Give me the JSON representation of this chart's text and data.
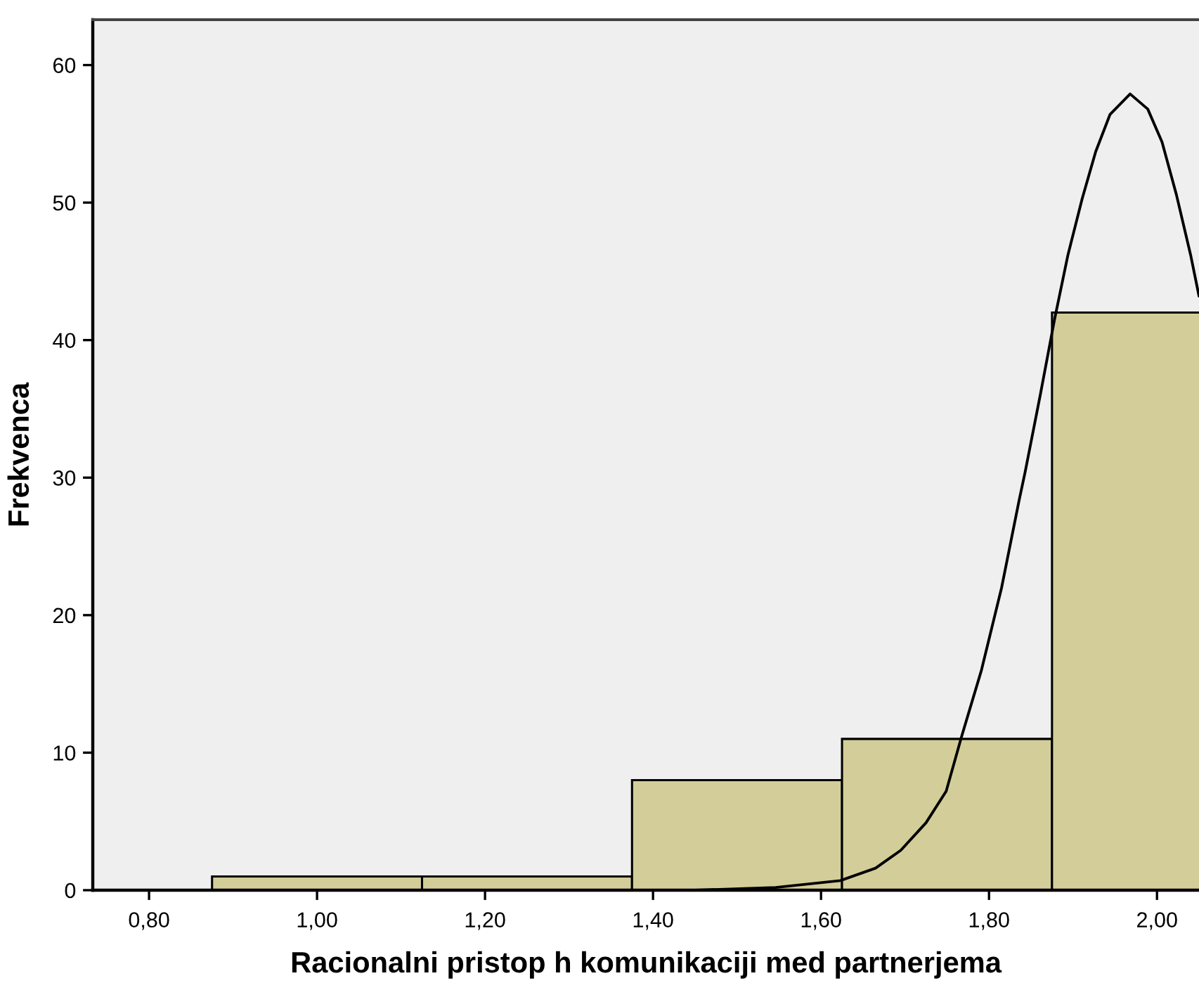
{
  "chart_data": {
    "type": "histogram",
    "xlabel": "Racionalni pristop h komunikaciji med partnerjema",
    "ylabel": "Frekvenca",
    "bins": [
      0.875,
      1.125,
      1.375,
      1.625,
      1.875,
      2.125
    ],
    "series": [
      {
        "color": "#d3ce99",
        "values": [
          1,
          1,
          8,
          11,
          42
        ]
      },
      {
        "type": "line",
        "color": "#000000",
        "x": [
          1.45,
          1.546,
          1.623,
          1.665,
          1.695,
          1.725,
          1.749,
          1.767,
          1.791,
          1.815,
          1.836,
          1.843,
          1.861,
          1.878,
          1.894,
          1.911,
          1.927,
          1.944,
          1.968,
          1.989,
          2.006,
          2.023,
          2.04,
          2.05
        ],
        "values": [
          0,
          0.2,
          0.7,
          1.6,
          2.9,
          4.9,
          7.2,
          11.1,
          16.0,
          22.0,
          28.4,
          30.4,
          36.0,
          41.5,
          46.2,
          50.3,
          53.7,
          56.4,
          57.9,
          56.8,
          54.4,
          50.6,
          46.2,
          43.2
        ]
      }
    ],
    "xlim": [
      0.733,
      2.05
    ],
    "ylim": [
      0,
      63.3
    ],
    "xticks": [
      {
        "value": 0.8,
        "label": "0,80"
      },
      {
        "value": 1.0,
        "label": "1,00"
      },
      {
        "value": 1.2,
        "label": "1,20"
      },
      {
        "value": 1.4,
        "label": "1,40"
      },
      {
        "value": 1.6,
        "label": "1,60"
      },
      {
        "value": 1.8,
        "label": "1,80"
      },
      {
        "value": 2.0,
        "label": "2,00"
      }
    ],
    "yticks": [
      0,
      10,
      20,
      30,
      40,
      50,
      60
    ],
    "grid": false
  }
}
